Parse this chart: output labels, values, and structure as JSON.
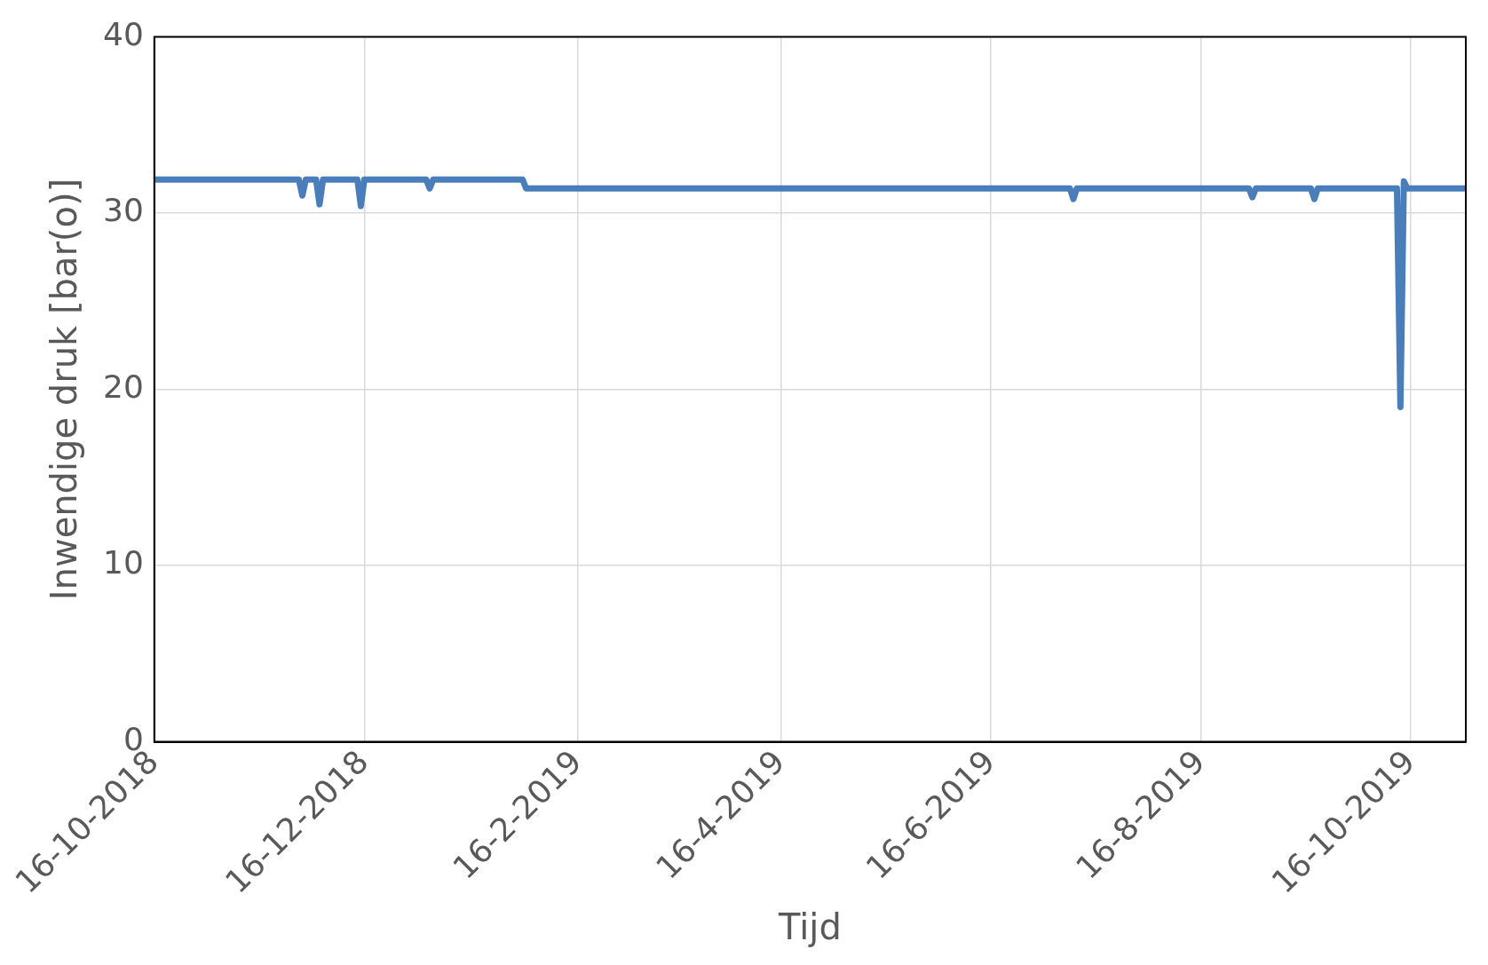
{
  "chart_data": {
    "type": "line",
    "xlabel": "Tijd",
    "ylabel": "Inwendige druk [bar(o)]",
    "xlim": [
      "2018-10-16",
      "2019-11-01"
    ],
    "xticks": [
      {
        "value": "2018-10-16",
        "label": "16-10-2018"
      },
      {
        "value": "2018-12-16",
        "label": "16-12-2018"
      },
      {
        "value": "2019-02-16",
        "label": "16-2-2019"
      },
      {
        "value": "2019-04-16",
        "label": "16-4-2019"
      },
      {
        "value": "2019-06-16",
        "label": "16-6-2019"
      },
      {
        "value": "2019-08-16",
        "label": "16-8-2019"
      },
      {
        "value": "2019-10-16",
        "label": "16-10-2019"
      }
    ],
    "ylim": [
      0,
      40
    ],
    "yticks": [
      0,
      10,
      20,
      30,
      40
    ],
    "grid": true,
    "legend": false,
    "marker": "none",
    "line_style": "solid",
    "series": [
      {
        "color": "#4a7ebb",
        "x": [
          "2018-10-16",
          "2018-11-27",
          "2018-11-28",
          "2018-11-29",
          "2018-12-02",
          "2018-12-03",
          "2018-12-04",
          "2018-12-14",
          "2018-12-15",
          "2018-12-16",
          "2019-01-03",
          "2019-01-04",
          "2019-01-05",
          "2019-01-31",
          "2019-02-01",
          "2019-07-09",
          "2019-07-10",
          "2019-07-11",
          "2019-08-30",
          "2019-08-31",
          "2019-09-01",
          "2019-09-17",
          "2019-09-18",
          "2019-09-19",
          "2019-10-12",
          "2019-10-13",
          "2019-10-14",
          "2019-10-15",
          "2019-11-01"
        ],
        "values": [
          31.9,
          31.9,
          31.0,
          31.9,
          31.9,
          30.5,
          31.9,
          31.9,
          30.4,
          31.9,
          31.9,
          31.4,
          31.9,
          31.9,
          31.4,
          31.4,
          30.8,
          31.4,
          31.4,
          30.9,
          31.4,
          31.4,
          30.8,
          31.4,
          31.4,
          19.0,
          31.8,
          31.4,
          31.4
        ]
      }
    ]
  }
}
